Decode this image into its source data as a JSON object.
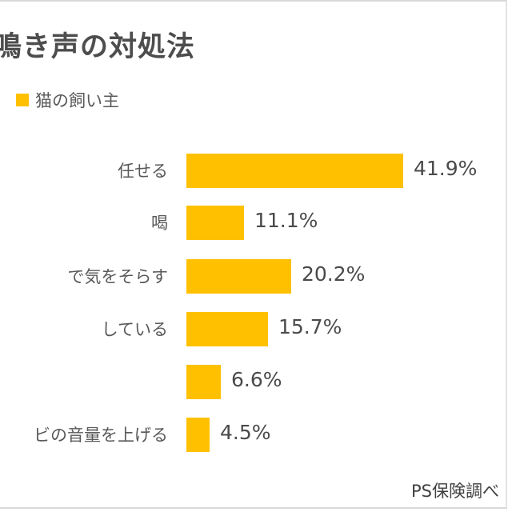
{
  "title": "鳴き声の対処法",
  "legend": [
    {
      "label": "猫の飼い主",
      "color": "#ffc000"
    }
  ],
  "colors": {
    "bar": "#ffc000",
    "text": "#595959",
    "border": "#d9d9d9"
  },
  "source": "PS保険調べ",
  "chart_data": {
    "type": "bar",
    "orientation": "horizontal",
    "title": "鳴き声の対処法",
    "categories": [
      "…任せる",
      "…喝",
      "…で気をそらす",
      "…している",
      "…",
      "…ビの音量を上げる"
    ],
    "series": [
      {
        "name": "猫の飼い主",
        "values": [
          41.9,
          11.1,
          20.2,
          15.7,
          6.6,
          4.5
        ],
        "color": "#ffc000"
      }
    ],
    "value_labels": [
      "41.9%",
      "11.1%",
      "20.2%",
      "15.7%",
      "6.6%",
      "4.5%"
    ],
    "xlabel": "",
    "ylabel": "",
    "xlim": [
      0,
      50
    ],
    "grid": false,
    "legend_position": "top-left",
    "annotations": [
      "PS保険調べ"
    ]
  },
  "rows": [
    {
      "label": "任せる",
      "value": 41.9,
      "value_label": "41.9%"
    },
    {
      "label": "喝",
      "value": 11.1,
      "value_label": "11.1%"
    },
    {
      "label": "で気をそらす",
      "value": 20.2,
      "value_label": "20.2%"
    },
    {
      "label": "している",
      "value": 15.7,
      "value_label": "15.7%"
    },
    {
      "label": "",
      "value": 6.6,
      "value_label": "6.6%"
    },
    {
      "label": "ビの音量を上げる",
      "value": 4.5,
      "value_label": "4.5%"
    }
  ]
}
